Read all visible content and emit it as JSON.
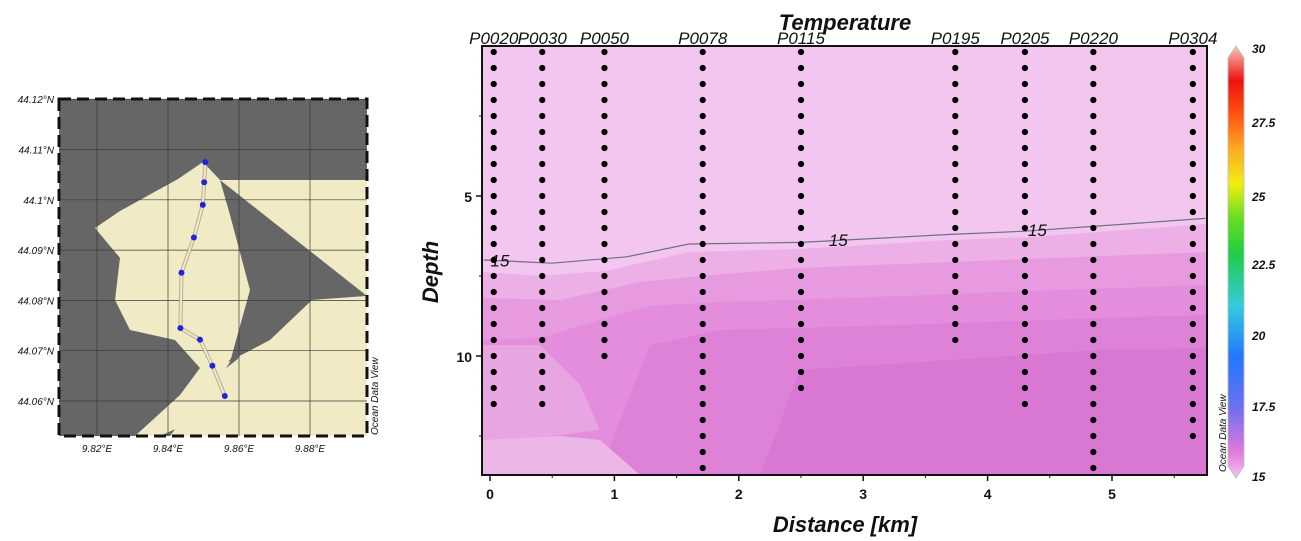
{
  "map": {
    "lat_labels": [
      "44.12°N",
      "44.11°N",
      "44.1°N",
      "44.09°N",
      "44.08°N",
      "44.07°N",
      "44.06°N"
    ],
    "lon_labels": [
      "9.82°E",
      "9.84°E",
      "9.86°E",
      "9.88°E"
    ],
    "watermark": "Ocean Data View",
    "colors": {
      "land": "#666666",
      "sea": "#f0ebc4",
      "track": "#2222dd"
    },
    "track_stations": [
      {
        "lon": 9.8505,
        "lat": 44.1075
      },
      {
        "lon": 9.8502,
        "lat": 44.1035
      },
      {
        "lon": 9.8498,
        "lat": 44.099
      },
      {
        "lon": 9.8473,
        "lat": 44.0925
      },
      {
        "lon": 9.8438,
        "lat": 44.0855
      },
      {
        "lon": 9.8435,
        "lat": 44.0745
      },
      {
        "lon": 9.849,
        "lat": 44.0722
      },
      {
        "lon": 9.8525,
        "lat": 44.067
      },
      {
        "lon": 9.856,
        "lat": 44.061
      }
    ]
  },
  "chart_data": {
    "type": "heatmap",
    "title": "Temperature",
    "xlabel": "Distance [km]",
    "ylabel": "Depth",
    "xlim": [
      -0.05,
      5.75
    ],
    "ylim": [
      13.5,
      0
    ],
    "x_ticks": [
      "0",
      "1",
      "2",
      "3",
      "4",
      "5"
    ],
    "y_ticks": [
      "5",
      "10"
    ],
    "stations": [
      {
        "name": "P0020",
        "x": 0.03,
        "max_depth": 11.9
      },
      {
        "name": "P0030",
        "x": 0.42,
        "max_depth": 11.5
      },
      {
        "name": "P0050",
        "x": 0.92,
        "max_depth": 10.2
      },
      {
        "name": "P0078",
        "x": 1.71,
        "max_depth": 13.5
      },
      {
        "name": "P0115",
        "x": 2.5,
        "max_depth": 11.2
      },
      {
        "name": "P0195",
        "x": 3.74,
        "max_depth": 9.9
      },
      {
        "name": "P0205",
        "x": 4.3,
        "max_depth": 11.7
      },
      {
        "name": "P0220",
        "x": 4.85,
        "max_depth": 13.5
      },
      {
        "name": "P0304",
        "x": 5.65,
        "max_depth": 12.6
      }
    ],
    "contours": [
      {
        "level": "15",
        "points": [
          [
            -0.05,
            7.0
          ],
          [
            0.5,
            7.1
          ],
          [
            1.1,
            6.9
          ],
          [
            1.6,
            6.5
          ],
          [
            2.5,
            6.45
          ],
          [
            3.7,
            6.2
          ],
          [
            4.3,
            6.1
          ],
          [
            5.75,
            5.7
          ]
        ],
        "labels": [
          {
            "text": "15",
            "x": 0.08,
            "y": 7.05
          },
          {
            "text": "15",
            "x": 2.8,
            "y": 6.4
          },
          {
            "text": "15",
            "x": 4.4,
            "y": 6.1
          }
        ]
      }
    ],
    "colorbar": {
      "ticks": [
        "30",
        "27.5",
        "25",
        "22.5",
        "20",
        "17.5",
        "15"
      ],
      "range": [
        15,
        30
      ],
      "label": "Ocean Data View"
    }
  }
}
